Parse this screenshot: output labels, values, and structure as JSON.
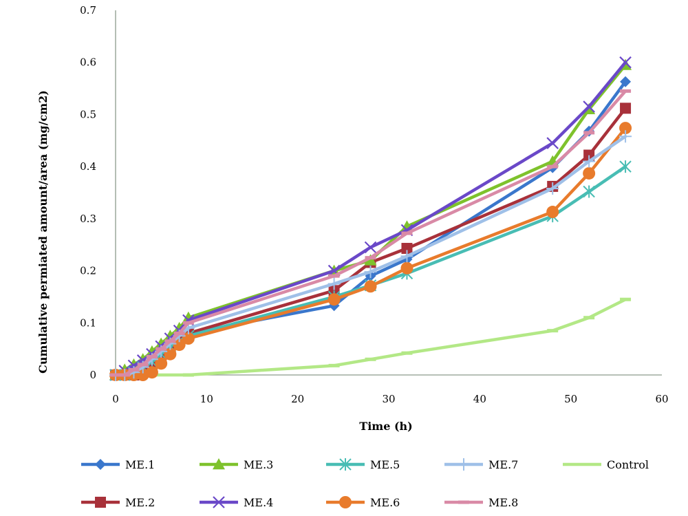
{
  "chart_data": {
    "type": "line",
    "title": "",
    "xlabel": "Time (h)",
    "ylabel": "Cumulative permiated amount/area (mg/cm2)",
    "xlim": [
      0,
      60
    ],
    "ylim": [
      0,
      0.7
    ],
    "xticks": [
      0,
      10,
      20,
      30,
      40,
      50,
      60
    ],
    "yticks": [
      0,
      0.1,
      0.2,
      0.3,
      0.4,
      0.5,
      0.6,
      0.7
    ],
    "ytick_labels": [
      "0",
      "0.1",
      "0.2",
      "0.3",
      "0.4",
      "0.5",
      "0.6",
      "0.7"
    ],
    "grid": false,
    "legend_position": "bottom",
    "x": [
      0,
      1,
      2,
      3,
      4,
      5,
      6,
      7,
      8,
      24,
      28,
      32,
      48,
      52,
      56
    ],
    "series": [
      {
        "name": "ME.1",
        "color": "#3A77CC",
        "marker": "diamond",
        "values": [
          0,
          0.005,
          0.015,
          0.025,
          0.035,
          0.045,
          0.055,
          0.07,
          0.08,
          0.133,
          0.19,
          0.222,
          0.398,
          0.468,
          0.563
        ]
      },
      {
        "name": "ME.2",
        "color": "#A8313A",
        "marker": "square",
        "values": [
          0,
          0,
          0,
          0.005,
          0.015,
          0.035,
          0.055,
          0.07,
          0.08,
          0.162,
          0.216,
          0.243,
          0.362,
          0.422,
          0.512
        ]
      },
      {
        "name": "ME.3",
        "color": "#7EC22C",
        "marker": "triangle",
        "values": [
          0,
          0.01,
          0.02,
          0.03,
          0.045,
          0.06,
          0.075,
          0.09,
          0.11,
          0.2,
          0.22,
          0.285,
          0.41,
          0.51,
          0.595
        ]
      },
      {
        "name": "ME.4",
        "color": "#6A48C8",
        "marker": "x",
        "values": [
          0,
          0.008,
          0.018,
          0.028,
          0.04,
          0.055,
          0.07,
          0.085,
          0.105,
          0.2,
          0.245,
          0.278,
          0.445,
          0.515,
          0.6
        ]
      },
      {
        "name": "ME.5",
        "color": "#48BDB4",
        "marker": "asterisk",
        "values": [
          0,
          0,
          0.005,
          0.015,
          0.025,
          0.04,
          0.055,
          0.065,
          0.075,
          0.15,
          0.172,
          0.195,
          0.305,
          0.352,
          0.4
        ]
      },
      {
        "name": "ME.6",
        "color": "#E87B2C",
        "marker": "circle",
        "values": [
          0,
          0,
          0,
          0,
          0.005,
          0.022,
          0.04,
          0.058,
          0.07,
          0.145,
          0.17,
          0.205,
          0.313,
          0.387,
          0.474
        ]
      },
      {
        "name": "ME.7",
        "color": "#9FC0E8",
        "marker": "plus",
        "values": [
          0,
          0,
          0.005,
          0.015,
          0.03,
          0.045,
          0.06,
          0.075,
          0.09,
          0.175,
          0.198,
          0.228,
          0.358,
          0.41,
          0.458
        ]
      },
      {
        "name": "ME.8",
        "color": "#D98AA6",
        "marker": "dash",
        "values": [
          0,
          0,
          0.01,
          0.02,
          0.035,
          0.05,
          0.065,
          0.08,
          0.1,
          0.19,
          0.225,
          0.272,
          0.4,
          0.465,
          0.545
        ]
      },
      {
        "name": "Control",
        "color": "#B3E886",
        "marker": "dash",
        "x": [
          0,
          8,
          24,
          28,
          32,
          48,
          52,
          56
        ],
        "values": [
          0,
          0,
          0.018,
          0.03,
          0.042,
          0.085,
          0.11,
          0.145
        ]
      }
    ],
    "legend_order": [
      "ME.1",
      "ME.3",
      "ME.5",
      "ME.7",
      "Control",
      "ME.2",
      "ME.4",
      "ME.6",
      "ME.8"
    ]
  }
}
